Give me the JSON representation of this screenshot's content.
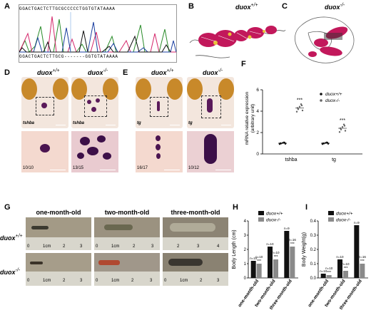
{
  "panel_labels": {
    "a": "A",
    "b": "B",
    "c": "C",
    "d": "D",
    "e": "E",
    "f": "F",
    "g": "G",
    "h": "H",
    "i": "I"
  },
  "genotypes": {
    "wt": "duox",
    "wt_sup": "+/+",
    "mut": "duox",
    "mut_sup": "-/-"
  },
  "sequence": {
    "top": "GGACTGACTCTTGCGCCCCCTGGTGTATAAAA",
    "bottom": "GGACTGACTCTTGCG-------GGTGTATAAAA"
  },
  "panel_d": {
    "probe": "tshba",
    "count_wt": "10/10",
    "count_mut": "13/15"
  },
  "panel_e": {
    "probe": "tg",
    "count_wt": "16/17",
    "count_mut": "10/12"
  },
  "panel_f": {
    "ylabel_1": "mRNA relative expression",
    "ylabel_2": "(arbitrary unit)",
    "legend_wt": "duox+/+",
    "legend_mut": "duox-/-",
    "significance": "***",
    "y_ticks": [
      "0",
      "2",
      "4",
      "6"
    ],
    "categories": [
      "tshba",
      "tg"
    ]
  },
  "panel_g": {
    "ages": [
      "one-month-old",
      "two-month-old",
      "three-month-old"
    ],
    "ruler_labels": [
      "0",
      "1cm",
      "2",
      "3",
      "4"
    ]
  },
  "chart_data": [
    {
      "type": "scatter",
      "title": "",
      "ylabel": "mRNA relative expression (arbitrary unit)",
      "categories": [
        "tshba",
        "tg"
      ],
      "ylim": [
        0,
        6
      ],
      "series": [
        {
          "name": "duox+/+",
          "values": [
            1.0,
            1.0
          ]
        },
        {
          "name": "duox-/-",
          "values": [
            4.3,
            2.4
          ]
        }
      ]
    },
    {
      "type": "bar",
      "title": "",
      "ylabel": "Body Length (cm)",
      "categories": [
        "one-month-old",
        "two-month-old",
        "three-month-old"
      ],
      "ylim": [
        0,
        4
      ],
      "y_ticks": [
        "0",
        "1",
        "2",
        "3",
        "4"
      ],
      "series": [
        {
          "name": "duox+/+",
          "values": [
            1.2,
            2.2,
            3.3
          ]
        },
        {
          "name": "duox-/-",
          "values": [
            1.0,
            1.3,
            2.2
          ]
        }
      ],
      "n_labels_wt": [
        "n=10",
        "n=10",
        "n=9"
      ],
      "n_labels_mut": [
        "n=10",
        "n=10",
        "n=16"
      ],
      "significance": "***"
    },
    {
      "type": "bar",
      "title": "",
      "ylabel": "Body Weight(g)",
      "categories": [
        "one-month-old",
        "two-month-old",
        "three-month-old"
      ],
      "ylim": [
        0,
        0.4
      ],
      "y_ticks": [
        "0.0",
        "0.1",
        "0.2",
        "0.3",
        "0.4"
      ],
      "series": [
        {
          "name": "duox+/+",
          "values": [
            0.03,
            0.13,
            0.37
          ]
        },
        {
          "name": "duox-/-",
          "values": [
            0.02,
            0.05,
            0.1
          ]
        }
      ],
      "n_labels_wt": [
        "n=10",
        "n=10",
        "n=9"
      ],
      "n_labels_mut": [
        "n=10",
        "n=10",
        "n=16"
      ],
      "significance": "***"
    }
  ]
}
